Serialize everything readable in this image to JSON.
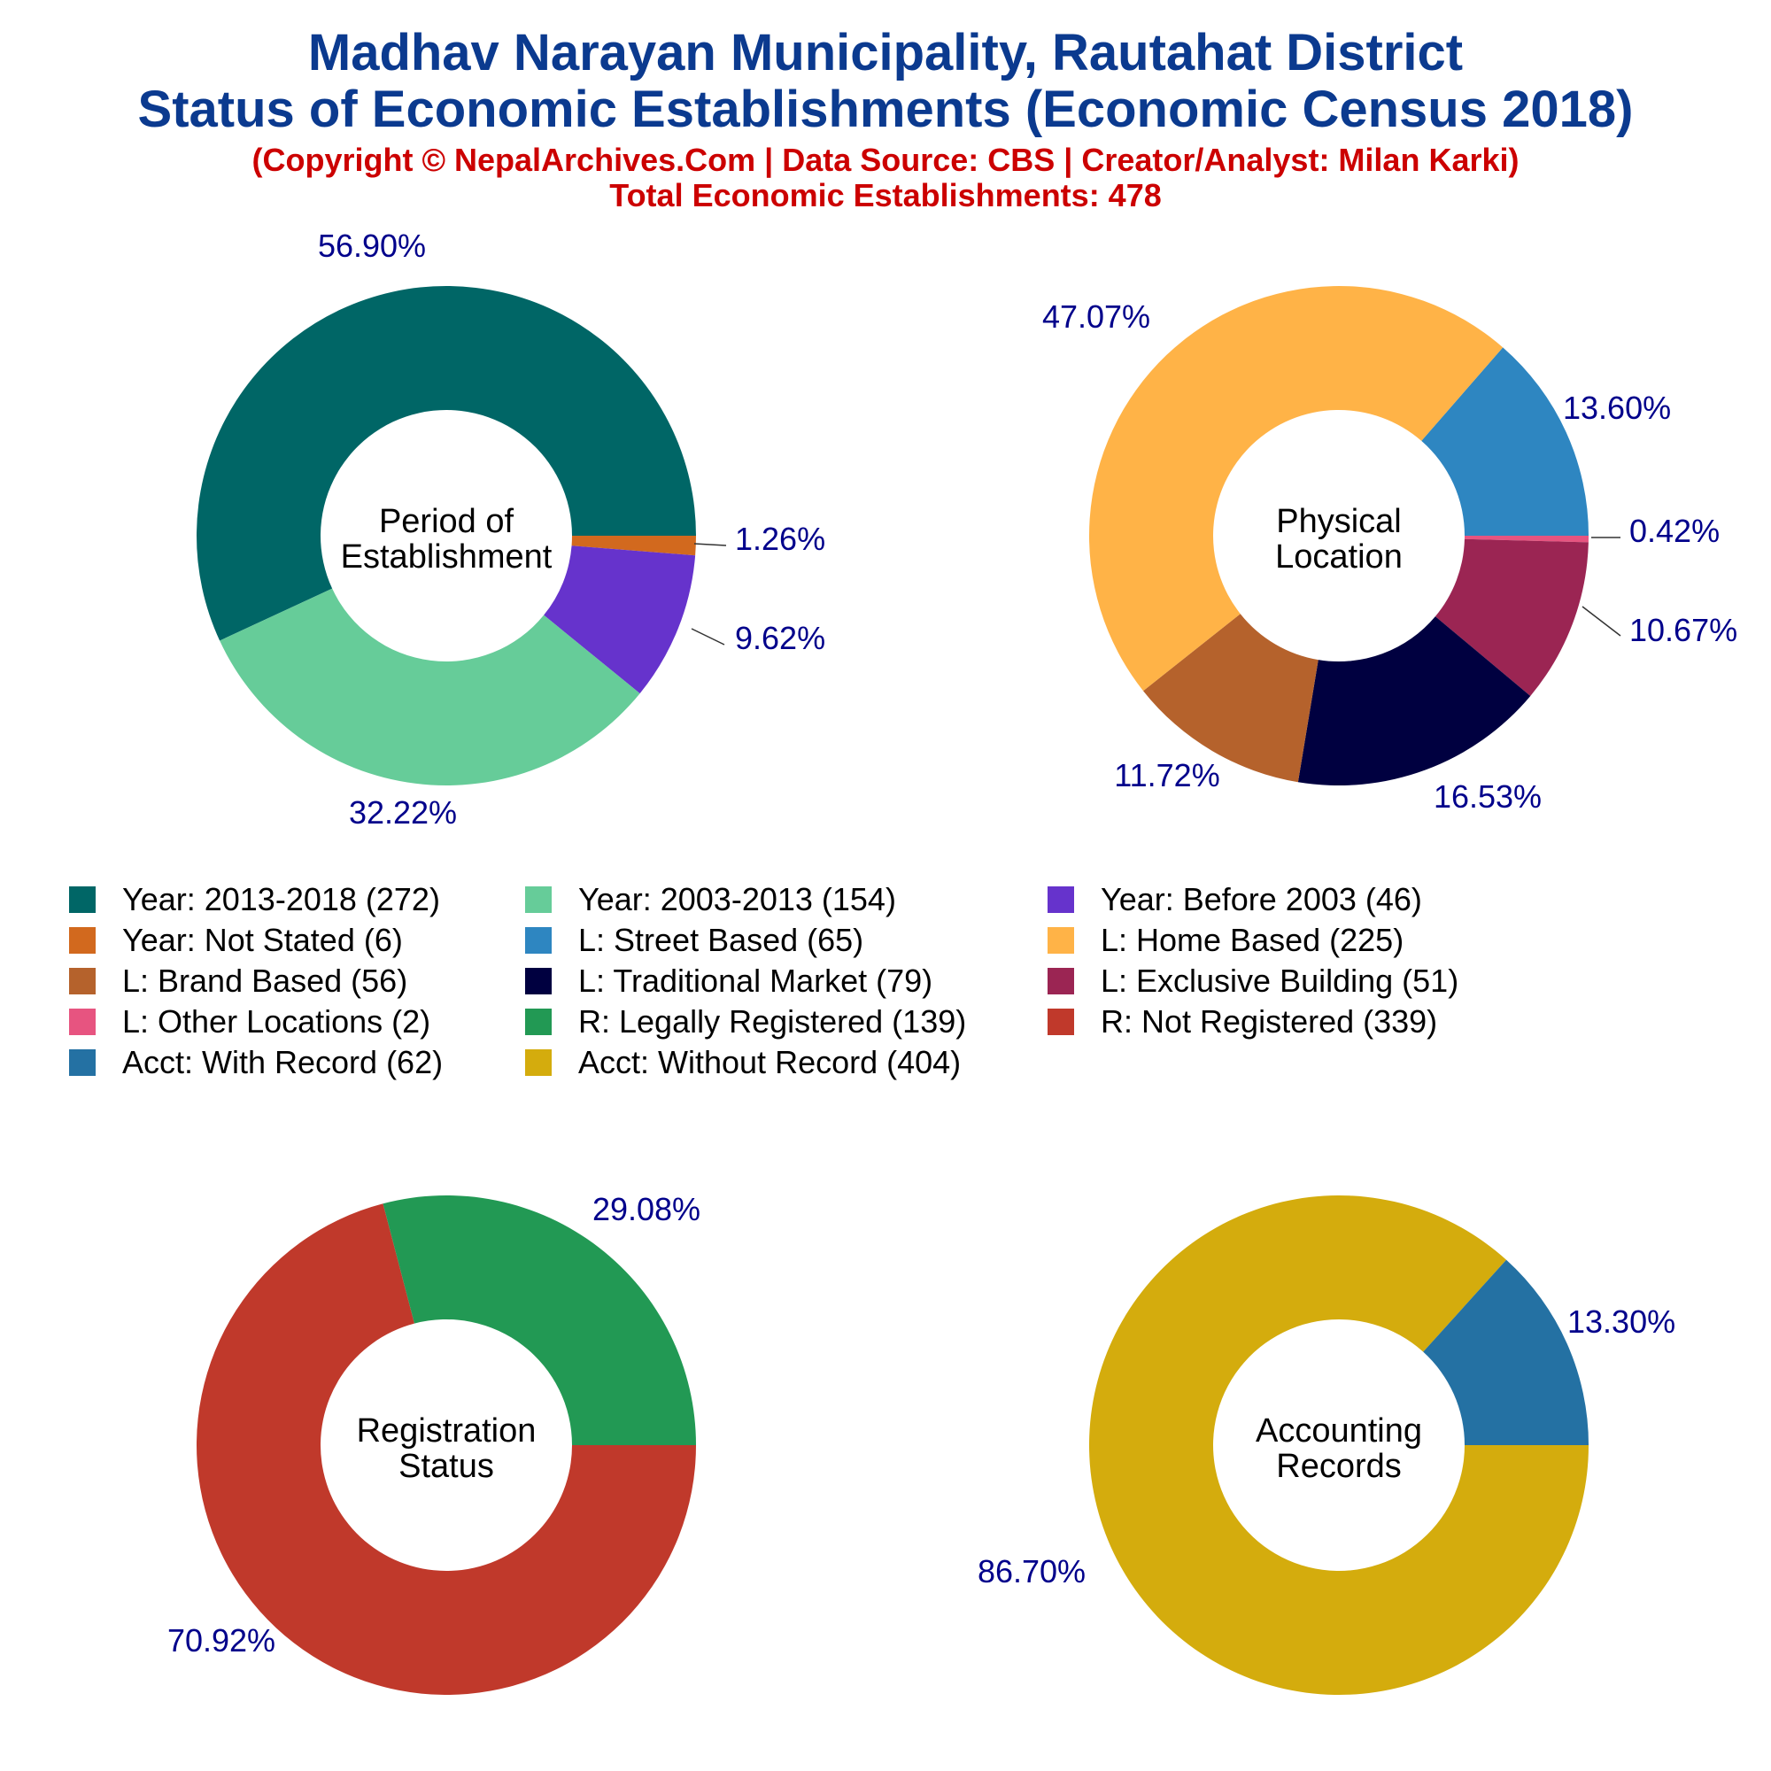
{
  "header": {
    "title_line1": "Madhav Narayan Municipality, Rautahat District",
    "title_line2": "Status of Economic Establishments (Economic Census 2018)",
    "copyright": "(Copyright © NepalArchives.Com | Data Source: CBS | Creator/Analyst: Milan Karki)",
    "total": "Total Economic Establishments: 478"
  },
  "colors": {
    "title": "#0b3a8f",
    "subtitle": "#cc0000",
    "pct_label": "#00008b"
  },
  "chart_data": [
    {
      "type": "pie",
      "center_label": [
        "Period of",
        "Establishment"
      ],
      "slices": [
        {
          "label": "Year: 2013-2018 (272)",
          "value": 272,
          "pct": "56.90%",
          "color": "#006666"
        },
        {
          "label": "Year: Not Stated (6)",
          "value": 6,
          "pct": "1.26%",
          "color": "#d2691e"
        },
        {
          "label": "Year: Before 2003 (46)",
          "value": 46,
          "pct": "9.62%",
          "color": "#6633cc"
        },
        {
          "label": "Year: 2003-2013 (154)",
          "value": 154,
          "pct": "32.22%",
          "color": "#66cc99"
        }
      ]
    },
    {
      "type": "pie",
      "center_label": [
        "Physical",
        "Location"
      ],
      "slices": [
        {
          "label": "L: Street Based (65)",
          "value": 65,
          "pct": "13.60%",
          "color": "#2e86c1"
        },
        {
          "label": "L: Other Locations (2)",
          "value": 2,
          "pct": "0.42%",
          "color": "#e75480"
        },
        {
          "label": "L: Exclusive Building (51)",
          "value": 51,
          "pct": "10.67%",
          "color": "#9b2553"
        },
        {
          "label": "L: Traditional Market (79)",
          "value": 79,
          "pct": "16.53%",
          "color": "#000040"
        },
        {
          "label": "L: Brand Based (56)",
          "value": 56,
          "pct": "11.72%",
          "color": "#b5622c"
        },
        {
          "label": "L: Home Based (225)",
          "value": 225,
          "pct": "47.07%",
          "color": "#ffb347"
        }
      ]
    },
    {
      "type": "pie",
      "center_label": [
        "Registration",
        "Status"
      ],
      "slices": [
        {
          "label": "R: Not Registered (339)",
          "value": 339,
          "pct": "70.92%",
          "color": "#c0392b"
        },
        {
          "label": "R: Legally Registered (139)",
          "value": 139,
          "pct": "29.08%",
          "color": "#229954"
        }
      ]
    },
    {
      "type": "pie",
      "center_label": [
        "Accounting",
        "Records"
      ],
      "slices": [
        {
          "label": "Acct: Without Record (404)",
          "value": 404,
          "pct": "86.70%",
          "color": "#d4ac0d"
        },
        {
          "label": "Acct: With Record (62)",
          "value": 62,
          "pct": "13.30%",
          "color": "#2471a3"
        }
      ]
    }
  ],
  "legend": [
    {
      "label": "Year: 2013-2018 (272)",
      "color": "#006666"
    },
    {
      "label": "Year: 2003-2013 (154)",
      "color": "#66cc99"
    },
    {
      "label": "Year: Before 2003 (46)",
      "color": "#6633cc"
    },
    {
      "label": "Year: Not Stated (6)",
      "color": "#d2691e"
    },
    {
      "label": "L: Street Based (65)",
      "color": "#2e86c1"
    },
    {
      "label": "L: Home Based (225)",
      "color": "#ffb347"
    },
    {
      "label": "L: Brand Based (56)",
      "color": "#b5622c"
    },
    {
      "label": "L: Traditional Market (79)",
      "color": "#000040"
    },
    {
      "label": "L: Exclusive Building (51)",
      "color": "#9b2553"
    },
    {
      "label": "L: Other Locations (2)",
      "color": "#e75480"
    },
    {
      "label": "R: Legally Registered (139)",
      "color": "#229954"
    },
    {
      "label": "R: Not Registered (339)",
      "color": "#c0392b"
    },
    {
      "label": "Acct: With Record (62)",
      "color": "#2471a3"
    },
    {
      "label": "Acct: Without Record (404)",
      "color": "#d4ac0d"
    }
  ]
}
